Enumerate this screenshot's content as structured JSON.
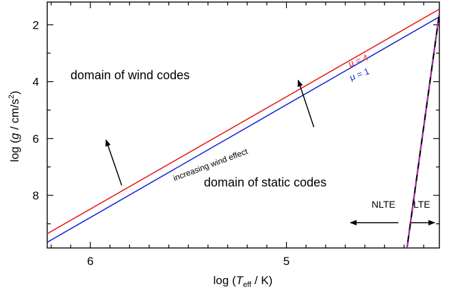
{
  "chart_data": {
    "type": "line",
    "xlabel": {
      "prefix": "log (",
      "var": "T",
      "sub": "eff",
      "suffix": " / K)"
    },
    "ylabel": {
      "prefix": "log (",
      "var": "g",
      "mid": " / cm/s",
      "sup": "2",
      "suffix": ")"
    },
    "x_axis": {
      "reversed": true,
      "lim": [
        6.22,
        4.22
      ],
      "ticks": [
        6,
        5
      ],
      "tick_labels": [
        "6",
        "5"
      ]
    },
    "y_axis": {
      "reversed": true,
      "lim": [
        1.2,
        9.85
      ],
      "ticks": [
        2,
        4,
        6,
        8
      ],
      "tick_labels": [
        "2",
        "4",
        "6",
        "8"
      ]
    },
    "grid": false,
    "series": [
      {
        "name": "μ = 4",
        "color": "#e8201e",
        "x": [
          6.22,
          4.22
        ],
        "y": [
          9.35,
          1.45
        ]
      },
      {
        "name": "μ = 1",
        "color": "#1a28d8",
        "x": [
          6.22,
          4.22
        ],
        "y": [
          9.65,
          1.72
        ]
      },
      {
        "name": "",
        "color": "#000000",
        "dash_color": "#e020e0",
        "x": [
          4.385,
          4.22
        ],
        "y": [
          9.85,
          1.6
        ]
      }
    ],
    "annotations": {
      "wind_domain": "domain of wind codes",
      "static_domain": "domain of static codes",
      "increasing_wind": "increasing wind effect",
      "nlte": "NLTE",
      "lte": "LTE"
    },
    "arrows": [
      {
        "x0": 5.84,
        "y0": 7.65,
        "x1": 5.92,
        "y1": 6.05
      },
      {
        "x0": 4.86,
        "y0": 5.6,
        "x1": 4.94,
        "y1": 3.95
      }
    ]
  }
}
